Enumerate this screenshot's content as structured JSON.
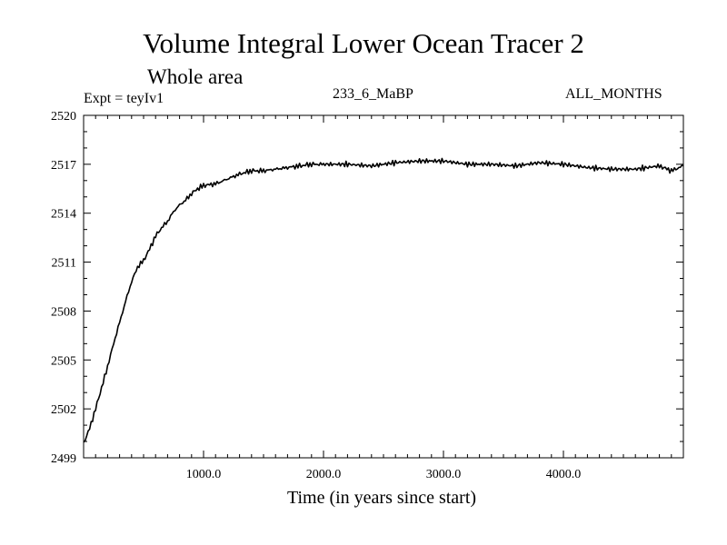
{
  "chart_data": {
    "type": "line",
    "title": "Volume Integral Lower Ocean Tracer 2",
    "subtitle": "Whole area",
    "experiment_label": "Expt = teyIv1",
    "run_label": "233_6_MaBP",
    "season_label": "ALL_MONTHS",
    "xlabel": "Time (in years since start)",
    "ylabel": "",
    "xlim": [
      0,
      5000
    ],
    "ylim": [
      2499,
      2520
    ],
    "xticks": [
      1000,
      2000,
      3000,
      4000
    ],
    "xtick_labels": [
      "1000.0",
      "2000.0",
      "3000.0",
      "4000.0"
    ],
    "yticks": [
      2499,
      2502,
      2505,
      2508,
      2511,
      2514,
      2517,
      2520
    ],
    "ytick_labels": [
      "2499",
      "2502",
      "2505",
      "2508",
      "2511",
      "2514",
      "2517",
      "2520"
    ],
    "grid": false,
    "series": [
      {
        "name": "Lower Ocean Tracer 2",
        "x": [
          0,
          50,
          100,
          150,
          200,
          250,
          300,
          350,
          400,
          450,
          500,
          550,
          600,
          650,
          700,
          750,
          800,
          850,
          900,
          950,
          1000,
          1100,
          1200,
          1300,
          1400,
          1500,
          1600,
          1700,
          1800,
          1900,
          2000,
          2200,
          2400,
          2600,
          2800,
          3000,
          3200,
          3400,
          3600,
          3800,
          4000,
          4200,
          4400,
          4600,
          4800,
          4900,
          5000
        ],
        "values": [
          2499.9,
          2500.8,
          2502.0,
          2503.3,
          2504.6,
          2506.0,
          2507.3,
          2508.6,
          2509.8,
          2510.7,
          2511.1,
          2511.8,
          2512.6,
          2513.1,
          2513.5,
          2514.1,
          2514.5,
          2514.8,
          2515.2,
          2515.5,
          2515.7,
          2515.8,
          2516.1,
          2516.4,
          2516.6,
          2516.6,
          2516.7,
          2516.8,
          2516.9,
          2517.0,
          2517.0,
          2517.0,
          2516.9,
          2517.1,
          2517.2,
          2517.2,
          2517.0,
          2517.0,
          2516.9,
          2517.1,
          2517.0,
          2516.8,
          2516.7,
          2516.7,
          2516.9,
          2516.6,
          2516.9
        ]
      }
    ]
  }
}
